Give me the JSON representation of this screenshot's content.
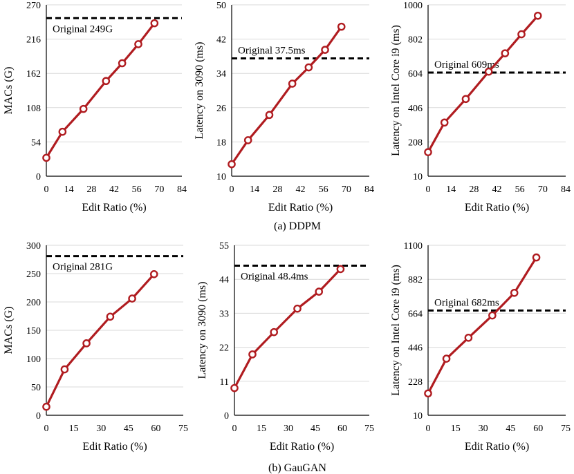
{
  "captions": {
    "top": "(a) DDPM",
    "bottom": "(b) GauGAN"
  },
  "colors": {
    "series": "#b01c20",
    "baseline": "#000000",
    "grid": "#d9d9d9"
  },
  "chart_data": [
    {
      "type": "line",
      "group": "DDPM",
      "title": "",
      "xlabel": "Edit Ratio (%)",
      "ylabel": "MACs (G)",
      "xticks": [
        0,
        14,
        28,
        42,
        56,
        70,
        84
      ],
      "xlim": [
        0,
        84
      ],
      "yticks": [
        0,
        54,
        108,
        162,
        216,
        270
      ],
      "ylim": [
        0,
        270
      ],
      "x": [
        0,
        10,
        23,
        37,
        47,
        57,
        67
      ],
      "y": [
        29,
        70,
        106,
        150,
        178,
        208,
        241
      ],
      "baseline": {
        "value": 249,
        "label": "Original 249G",
        "label_pos": "below-left"
      },
      "grid": true
    },
    {
      "type": "line",
      "group": "DDPM",
      "title": "",
      "xlabel": "Edit Ratio (%)",
      "ylabel": "Latency on 3090 (ms)",
      "xticks": [
        0,
        14,
        28,
        42,
        56,
        70,
        84
      ],
      "xlim": [
        0,
        84
      ],
      "yticks": [
        10,
        18,
        26,
        34,
        42,
        50
      ],
      "ylim": [
        10,
        50
      ],
      "x": [
        0,
        10,
        23,
        37,
        47,
        57,
        67
      ],
      "y": [
        12.8,
        18.4,
        24.3,
        31.6,
        35.4,
        39.5,
        44.9
      ],
      "baseline": {
        "value": 37.5,
        "label": "Original 37.5ms",
        "label_pos": "above-left"
      },
      "grid": true
    },
    {
      "type": "line",
      "group": "DDPM",
      "title": "",
      "xlabel": "Edit Ratio (%)",
      "ylabel": "Latency on Intel Core i9 (ms)",
      "xticks": [
        0,
        14,
        28,
        42,
        56,
        70,
        84
      ],
      "xlim": [
        0,
        84
      ],
      "yticks": [
        10,
        208,
        406,
        604,
        802,
        1000
      ],
      "ylim": [
        10,
        1000
      ],
      "x": [
        0,
        10,
        23,
        37,
        47,
        57,
        67
      ],
      "y": [
        149,
        320,
        456,
        614,
        720,
        830,
        937
      ],
      "baseline": {
        "value": 609,
        "label": "Original 609ms",
        "label_pos": "above-left"
      },
      "grid": true
    },
    {
      "type": "line",
      "group": "GauGAN",
      "title": "",
      "xlabel": "Edit Ratio (%)",
      "ylabel": "MACs (G)",
      "xticks": [
        0,
        15,
        30,
        45,
        60,
        75
      ],
      "xlim": [
        0,
        75
      ],
      "yticks": [
        0,
        50,
        100,
        150,
        200,
        250,
        300
      ],
      "ylim": [
        0,
        300
      ],
      "x": [
        0,
        10,
        22,
        35,
        47,
        59
      ],
      "y": [
        15,
        81,
        127,
        174,
        206,
        249
      ],
      "baseline": {
        "value": 281,
        "label": "Original 281G",
        "label_pos": "below-left"
      },
      "grid": true
    },
    {
      "type": "line",
      "group": "GauGAN",
      "title": "",
      "xlabel": "Edit Ratio (%)",
      "ylabel": "Latency on 3090 (ms)",
      "xticks": [
        0,
        15,
        30,
        45,
        60,
        75
      ],
      "xlim": [
        0,
        75
      ],
      "yticks": [
        0,
        11,
        22,
        33,
        44,
        55
      ],
      "ylim": [
        0,
        55
      ],
      "x": [
        0,
        10,
        22,
        35,
        47,
        59
      ],
      "y": [
        8.8,
        19.7,
        26.9,
        34.5,
        40.0,
        47.3
      ],
      "baseline": {
        "value": 48.4,
        "label": "Original 48.4ms",
        "label_pos": "below-left"
      },
      "grid": true
    },
    {
      "type": "line",
      "group": "GauGAN",
      "title": "",
      "xlabel": "Edit Ratio (%)",
      "ylabel": "Latency on Intel Core i9 (ms)",
      "xticks": [
        0,
        15,
        30,
        45,
        60,
        75
      ],
      "xlim": [
        0,
        75
      ],
      "yticks": [
        10,
        228,
        446,
        664,
        882,
        1100
      ],
      "ylim": [
        10,
        1100
      ],
      "x": [
        0,
        10,
        22,
        35,
        47,
        59
      ],
      "y": [
        150,
        373,
        507,
        650,
        795,
        1022
      ],
      "baseline": {
        "value": 682,
        "label": "Original 682ms",
        "label_pos": "above-left"
      },
      "grid": true
    }
  ]
}
